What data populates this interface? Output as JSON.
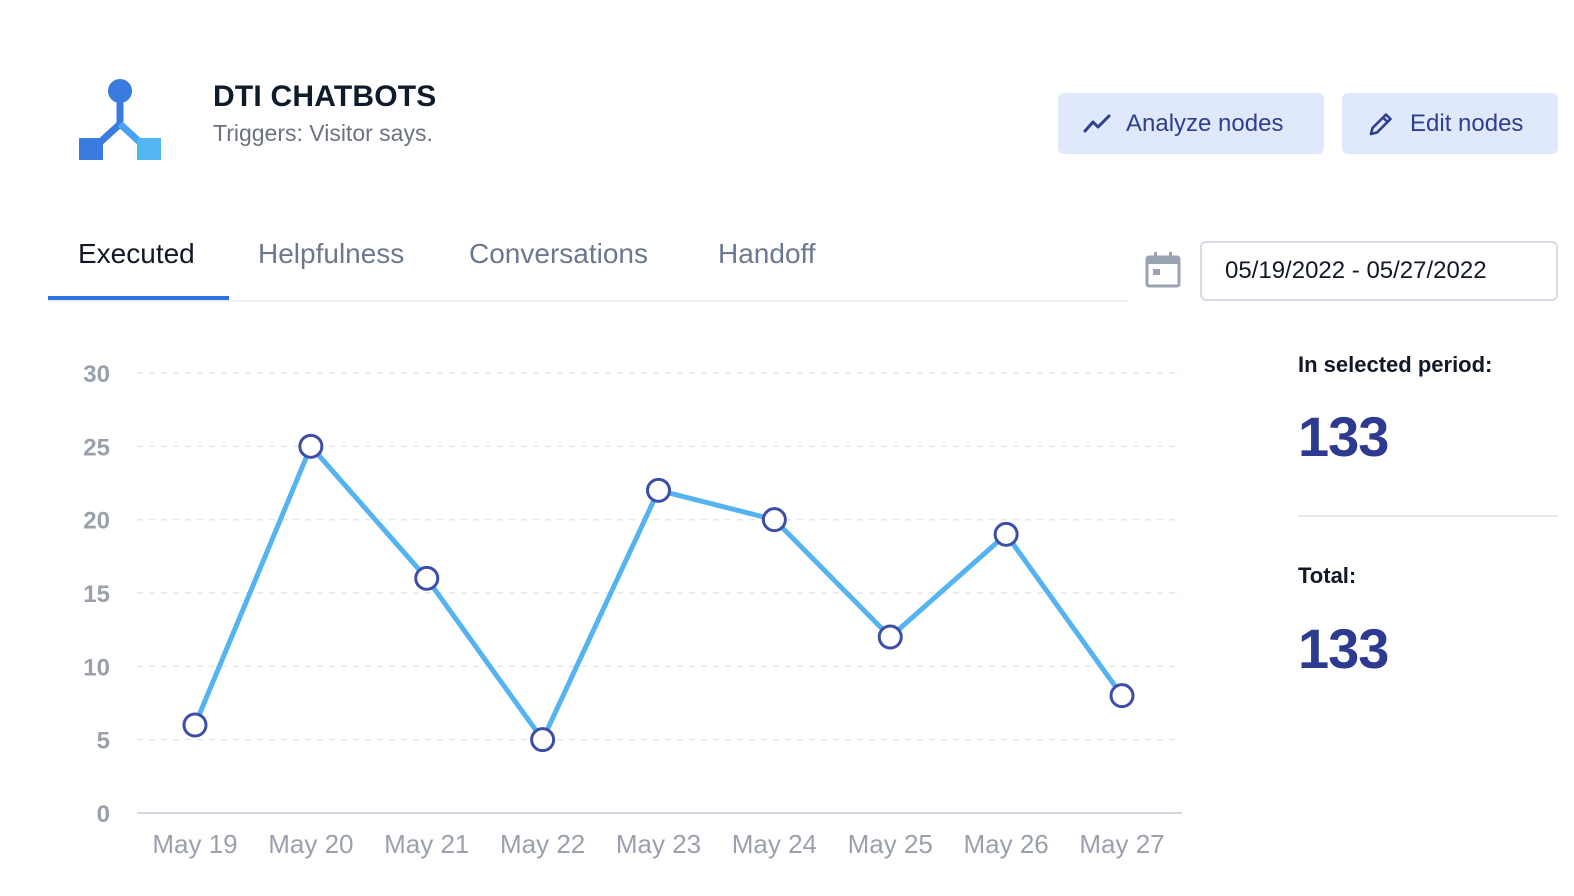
{
  "header": {
    "title": "DTI CHATBOTS",
    "subtitle": "Triggers: Visitor says.",
    "logo_icon": "bot-flow-icon"
  },
  "actions": {
    "analyze_label": "Analyze nodes",
    "analyze_icon": "trend-line-icon",
    "edit_label": "Edit nodes",
    "edit_icon": "pencil-icon"
  },
  "tabs": [
    {
      "label": "Executed",
      "active": true
    },
    {
      "label": "Helpfulness",
      "active": false
    },
    {
      "label": "Conversations",
      "active": false
    },
    {
      "label": "Handoff",
      "active": false
    }
  ],
  "date_range": {
    "icon": "calendar-icon",
    "value": "05/19/2022 - 05/27/2022"
  },
  "stats": {
    "period_label": "In selected period:",
    "period_value": "133",
    "total_label": "Total:",
    "total_value": "133"
  },
  "colors": {
    "accent": "#2f73e0",
    "line": "#55b4f0",
    "marker": "#3d4ea8",
    "stat": "#2c3a8f",
    "button_bg": "#dfe9fb"
  },
  "chart_data": {
    "type": "line",
    "categories": [
      "May 19",
      "May 20",
      "May 21",
      "May 22",
      "May 23",
      "May 24",
      "May 25",
      "May 26",
      "May 27"
    ],
    "series": [
      {
        "values": [
          6,
          25,
          16,
          5,
          22,
          20,
          12,
          19,
          8
        ]
      }
    ],
    "yticks": [
      0,
      5,
      10,
      15,
      20,
      25,
      30
    ],
    "ylim": [
      0,
      30
    ],
    "grid": true,
    "title": "",
    "xlabel": "",
    "ylabel": ""
  }
}
